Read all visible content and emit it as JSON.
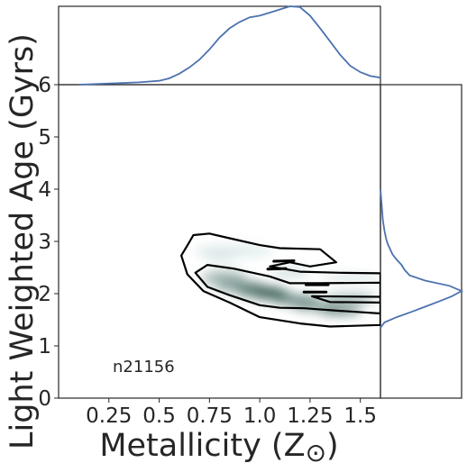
{
  "chart_data": {
    "type": "scatter",
    "subtype": "joint-kde",
    "xlabel": "Metallicity (Z",
    "xlabel_symbol": "⊙",
    "xlabel_close": ")",
    "ylabel": "Light Weighted Age (Gyrs)",
    "annotation": "n21156",
    "xlim": [
      0.0,
      1.6
    ],
    "ylim": [
      0,
      6
    ],
    "xticks": [
      {
        "value": 0.25,
        "label": "0.25"
      },
      {
        "value": 0.5,
        "label": "0.5"
      },
      {
        "value": 0.75,
        "label": "0.75"
      },
      {
        "value": 1.0,
        "label": "1.0"
      },
      {
        "value": 1.25,
        "label": "1.25"
      },
      {
        "value": 1.5,
        "label": "1.5"
      }
    ],
    "yticks": [
      {
        "value": 0,
        "label": "0"
      },
      {
        "value": 1,
        "label": "1"
      },
      {
        "value": 2,
        "label": "2"
      },
      {
        "value": 3,
        "label": "3"
      },
      {
        "value": 4,
        "label": "4"
      },
      {
        "value": 5,
        "label": "5"
      },
      {
        "value": 6,
        "label": "6"
      }
    ],
    "grid": false,
    "colors": {
      "contour": "#000000",
      "marginal": "#4c72b0",
      "density_low": "#e8f3f4",
      "density_high": "#0d3b30"
    },
    "contours": [
      {
        "level": "outer",
        "points": [
          [
            0.61,
            2.73
          ],
          [
            0.64,
            2.92
          ],
          [
            0.67,
            3.12
          ],
          [
            0.75,
            3.15
          ],
          [
            0.85,
            3.06
          ],
          [
            1.0,
            2.93
          ],
          [
            1.1,
            2.87
          ],
          [
            1.3,
            2.85
          ],
          [
            1.38,
            2.6
          ],
          [
            1.25,
            2.52
          ],
          [
            1.15,
            2.6
          ],
          [
            1.05,
            2.52
          ],
          [
            1.2,
            2.42
          ],
          [
            1.4,
            2.4
          ],
          [
            1.6,
            2.39
          ],
          [
            1.6,
            1.4
          ],
          [
            1.35,
            1.37
          ],
          [
            1.2,
            1.43
          ],
          [
            1.0,
            1.55
          ],
          [
            0.85,
            1.83
          ],
          [
            0.72,
            2.05
          ],
          [
            0.64,
            2.37
          ],
          [
            0.61,
            2.73
          ]
        ]
      },
      {
        "level": "middle",
        "points": [
          [
            0.68,
            2.4
          ],
          [
            0.74,
            2.55
          ],
          [
            0.87,
            2.48
          ],
          [
            1.05,
            2.33
          ],
          [
            1.15,
            2.2
          ],
          [
            1.3,
            2.2
          ],
          [
            1.6,
            2.21
          ],
          [
            1.6,
            1.62
          ],
          [
            1.4,
            1.67
          ],
          [
            1.22,
            1.72
          ],
          [
            1.1,
            1.73
          ],
          [
            1.0,
            1.78
          ],
          [
            0.85,
            1.97
          ],
          [
            0.74,
            2.13
          ],
          [
            0.68,
            2.4
          ]
        ]
      },
      {
        "level": "inner",
        "points": [
          [
            1.26,
            1.95
          ],
          [
            1.6,
            1.94
          ],
          [
            1.6,
            1.83
          ],
          [
            1.35,
            1.84
          ],
          [
            1.26,
            1.95
          ]
        ]
      }
    ],
    "small_contours": [
      {
        "points": [
          [
            1.07,
            2.62
          ],
          [
            1.17,
            2.63
          ]
        ]
      },
      {
        "points": [
          [
            1.04,
            2.47
          ],
          [
            1.13,
            2.48
          ]
        ]
      },
      {
        "points": [
          [
            1.23,
            2.17
          ],
          [
            1.34,
            2.17
          ]
        ]
      },
      {
        "points": [
          [
            1.22,
            2.03
          ],
          [
            1.33,
            2.03
          ]
        ]
      }
    ],
    "density_blobs": [
      {
        "x": 0.87,
        "y": 2.82,
        "rx": 0.2,
        "ry": 0.12,
        "intensity": 0.05
      },
      {
        "x": 0.8,
        "y": 2.7,
        "rx": 0.08,
        "ry": 0.06,
        "intensity": 0.1
      },
      {
        "x": 0.82,
        "y": 2.3,
        "rx": 0.11,
        "ry": 0.14,
        "intensity": 0.35
      },
      {
        "x": 0.9,
        "y": 2.15,
        "rx": 0.12,
        "ry": 0.1,
        "intensity": 0.55
      },
      {
        "x": 1.0,
        "y": 2.05,
        "rx": 0.12,
        "ry": 0.1,
        "intensity": 0.75
      },
      {
        "x": 1.06,
        "y": 1.98,
        "rx": 0.1,
        "ry": 0.08,
        "intensity": 0.9
      },
      {
        "x": 1.18,
        "y": 1.88,
        "rx": 0.12,
        "ry": 0.09,
        "intensity": 0.65
      },
      {
        "x": 1.28,
        "y": 1.75,
        "rx": 0.12,
        "ry": 0.08,
        "intensity": 0.5
      },
      {
        "x": 1.4,
        "y": 1.68,
        "rx": 0.11,
        "ry": 0.08,
        "intensity": 0.7
      },
      {
        "x": 1.45,
        "y": 1.9,
        "rx": 0.13,
        "ry": 0.1,
        "intensity": 0.35
      },
      {
        "x": 1.45,
        "y": 2.3,
        "rx": 0.15,
        "ry": 0.06,
        "intensity": 0.12
      },
      {
        "x": 1.15,
        "y": 2.4,
        "rx": 0.1,
        "ry": 0.08,
        "intensity": 0.15
      }
    ],
    "marginal_x": {
      "x": [
        0.1,
        0.2,
        0.3,
        0.4,
        0.5,
        0.55,
        0.6,
        0.65,
        0.7,
        0.75,
        0.8,
        0.85,
        0.9,
        0.95,
        1.0,
        1.05,
        1.1,
        1.15,
        1.2,
        1.25,
        1.3,
        1.35,
        1.4,
        1.45,
        1.5,
        1.55,
        1.6
      ],
      "density": [
        0.0,
        0.01,
        0.02,
        0.03,
        0.05,
        0.08,
        0.14,
        0.22,
        0.32,
        0.45,
        0.6,
        0.72,
        0.8,
        0.86,
        0.88,
        0.92,
        0.96,
        1.0,
        0.99,
        0.88,
        0.72,
        0.55,
        0.38,
        0.24,
        0.16,
        0.11,
        0.09
      ]
    },
    "marginal_y": {
      "y": [
        1.35,
        1.45,
        1.55,
        1.65,
        1.75,
        1.85,
        1.95,
        2.05,
        2.15,
        2.25,
        2.35,
        2.45,
        2.55,
        2.65,
        2.75,
        2.85,
        2.95,
        3.05,
        3.2,
        3.4,
        3.6,
        3.8,
        4.0
      ],
      "density": [
        0.0,
        0.05,
        0.2,
        0.38,
        0.55,
        0.72,
        0.88,
        1.0,
        0.85,
        0.55,
        0.36,
        0.3,
        0.26,
        0.2,
        0.15,
        0.12,
        0.09,
        0.07,
        0.05,
        0.03,
        0.02,
        0.01,
        0.0
      ]
    }
  }
}
